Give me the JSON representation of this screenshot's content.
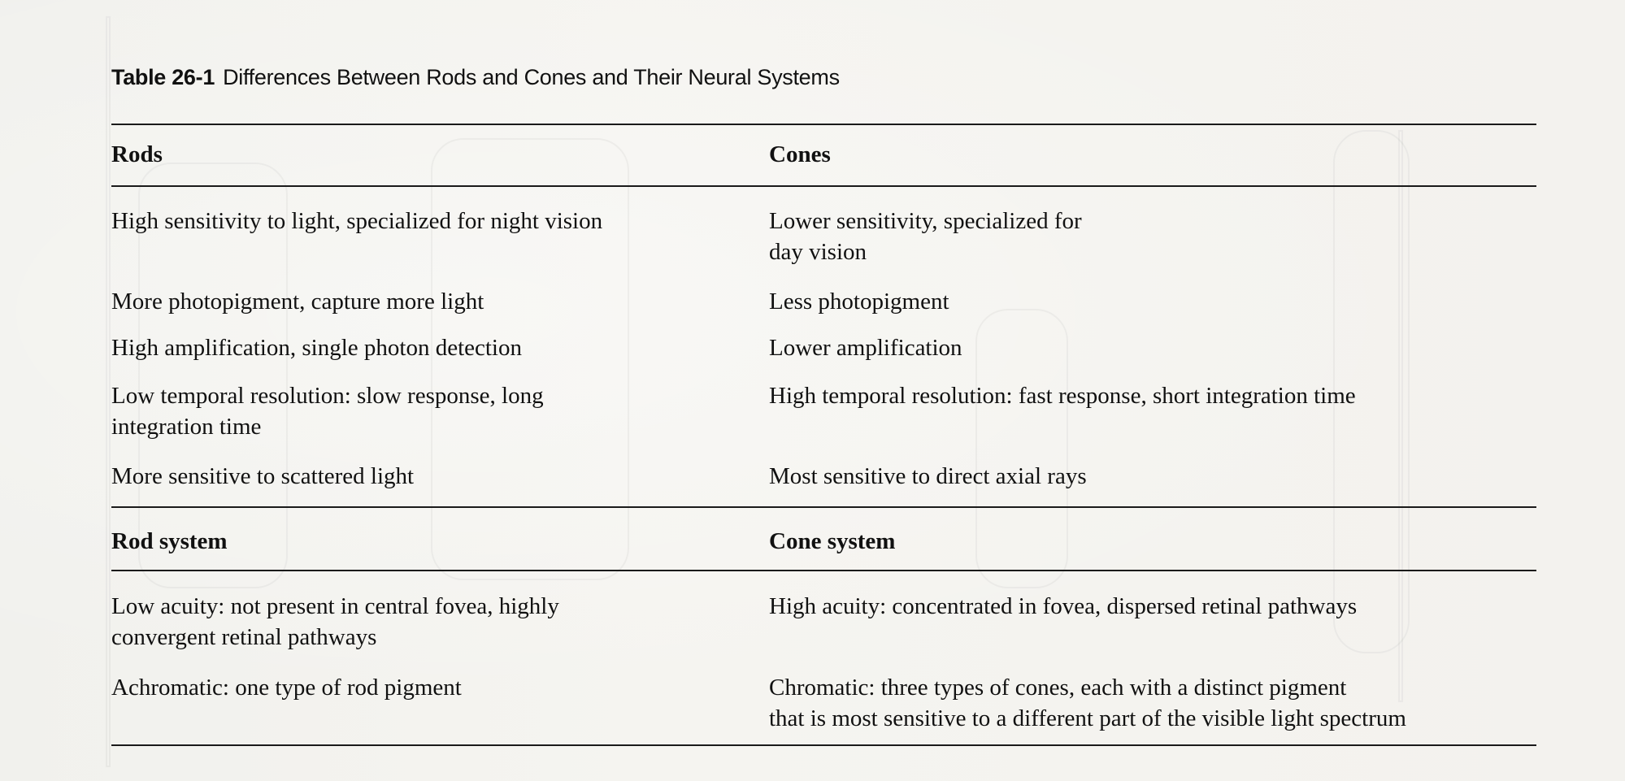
{
  "table": {
    "caption_number": "Table 26-1",
    "caption_title": "Differences Between Rods and Cones and Their Neural Systems",
    "section1": {
      "header_left": "Rods",
      "header_right": "Cones",
      "rows": [
        {
          "left": [
            "High sensitivity to light, specialized for night vision"
          ],
          "right": [
            "Lower sensitivity, specialized for",
            "day vision"
          ]
        },
        {
          "left": [
            "More photopigment, capture more light"
          ],
          "right": [
            "Less photopigment"
          ]
        },
        {
          "left": [
            "High amplification, single photon detection"
          ],
          "right": [
            "Lower amplification"
          ]
        },
        {
          "left": [
            "Low temporal resolution: slow response, long",
            "integration time"
          ],
          "right": [
            "High temporal resolution: fast response, short integration time"
          ]
        },
        {
          "left": [
            "More sensitive to scattered light"
          ],
          "right": [
            "Most sensitive to direct axial rays"
          ]
        }
      ]
    },
    "section2": {
      "header_left": "Rod system",
      "header_right": "Cone system",
      "rows": [
        {
          "left": [
            "Low acuity: not present in central fovea, highly",
            "convergent retinal pathways"
          ],
          "right": [
            "High acuity: concentrated in fovea, dispersed retinal pathways"
          ]
        },
        {
          "left": [
            "Achromatic: one type of rod pigment"
          ],
          "right": [
            "Chromatic: three types of cones, each with a distinct pigment",
            "that is most sensitive to a different part of the visible light spectrum"
          ]
        }
      ]
    }
  }
}
